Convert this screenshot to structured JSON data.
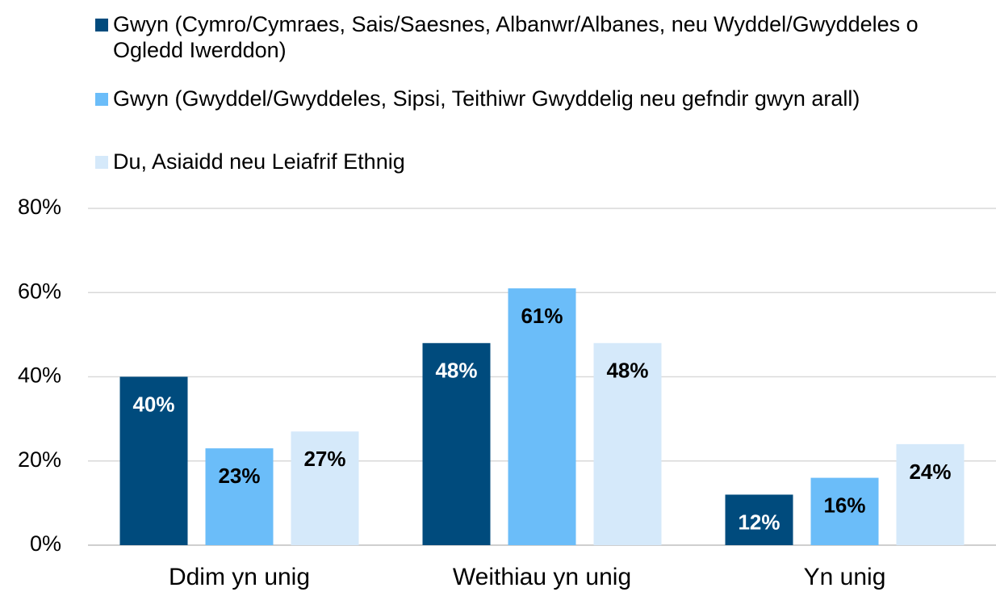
{
  "chart_data": {
    "type": "bar",
    "categories": [
      "Ddim yn unig",
      "Weithiau yn unig",
      "Yn unig"
    ],
    "series": [
      {
        "name": "Gwyn (Cymro/Cymraes, Sais/Saesnes, Albanwr/Albanes, neu Wyddel/Gwyddeles o Ogledd Iwerddon)",
        "color": "#004b7d",
        "label_color": "#ffffff",
        "values": [
          40,
          48,
          12
        ],
        "value_labels": [
          "40%",
          "48%",
          "12%"
        ]
      },
      {
        "name": "Gwyn (Gwyddel/Gwyddeles, Sipsi, Teithiwr Gwyddelig neu gefndir gwyn arall)",
        "color": "#6bbdf9",
        "label_color": "#000000",
        "values": [
          23,
          61,
          16
        ],
        "value_labels": [
          "23%",
          "61%",
          "16%"
        ]
      },
      {
        "name": "Du, Asiaidd neu Leiafrif Ethnig",
        "color": "#d5e9fa",
        "label_color": "#000000",
        "values": [
          27,
          48,
          24
        ],
        "value_labels": [
          "27%",
          "48%",
          "24%"
        ]
      }
    ],
    "ylim": [
      0,
      80
    ],
    "yticks": [
      {
        "value": 0,
        "label": "0%"
      },
      {
        "value": 20,
        "label": "20%"
      },
      {
        "value": 40,
        "label": "40%"
      },
      {
        "value": 60,
        "label": "60%"
      },
      {
        "value": 80,
        "label": "80%"
      }
    ],
    "grid": true,
    "legend": "top"
  }
}
